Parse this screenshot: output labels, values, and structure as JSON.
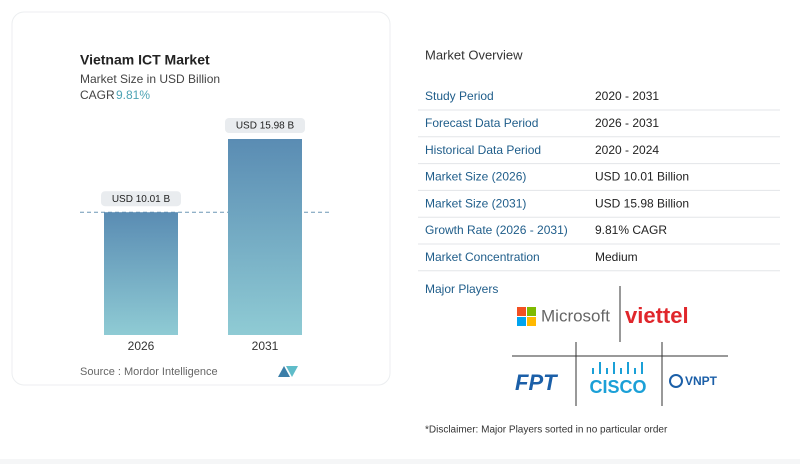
{
  "chart_data": {
    "type": "bar",
    "title": "Vietnam ICT Market",
    "subtitle": "Market Size in USD Billion",
    "cagr_label": "CAGR",
    "cagr_value": "9.81%",
    "categories": [
      "2026",
      "2031"
    ],
    "values": [
      10.01,
      15.98
    ],
    "value_labels": [
      "USD 10.01 B",
      "USD 15.98 B"
    ],
    "color": [
      "#5a8cb3",
      "#8fcbd4"
    ],
    "source": "Source :  Mordor Intelligence"
  },
  "overview": {
    "title": "Market Overview",
    "rows": [
      [
        "Study Period",
        "2020 - 2031"
      ],
      [
        "Forecast Data Period",
        "2026 - 2031"
      ],
      [
        "Historical Data Period",
        "2020 - 2024"
      ],
      [
        "Market Size (2026)",
        "USD 10.01 Billion"
      ],
      [
        "Market Size (2031)",
        "USD 15.98 Billion"
      ],
      [
        "Growth Rate (2026 - 2031)",
        "9.81% CAGR"
      ],
      [
        "Market Concentration",
        "Medium"
      ]
    ]
  },
  "players": {
    "title": "Major Players",
    "logos": [
      "Microsoft",
      "viettel",
      "FPT",
      "CISCO",
      "VNPT"
    ],
    "disclaimer": "*Disclaimer: Major Players sorted in no particular order"
  }
}
